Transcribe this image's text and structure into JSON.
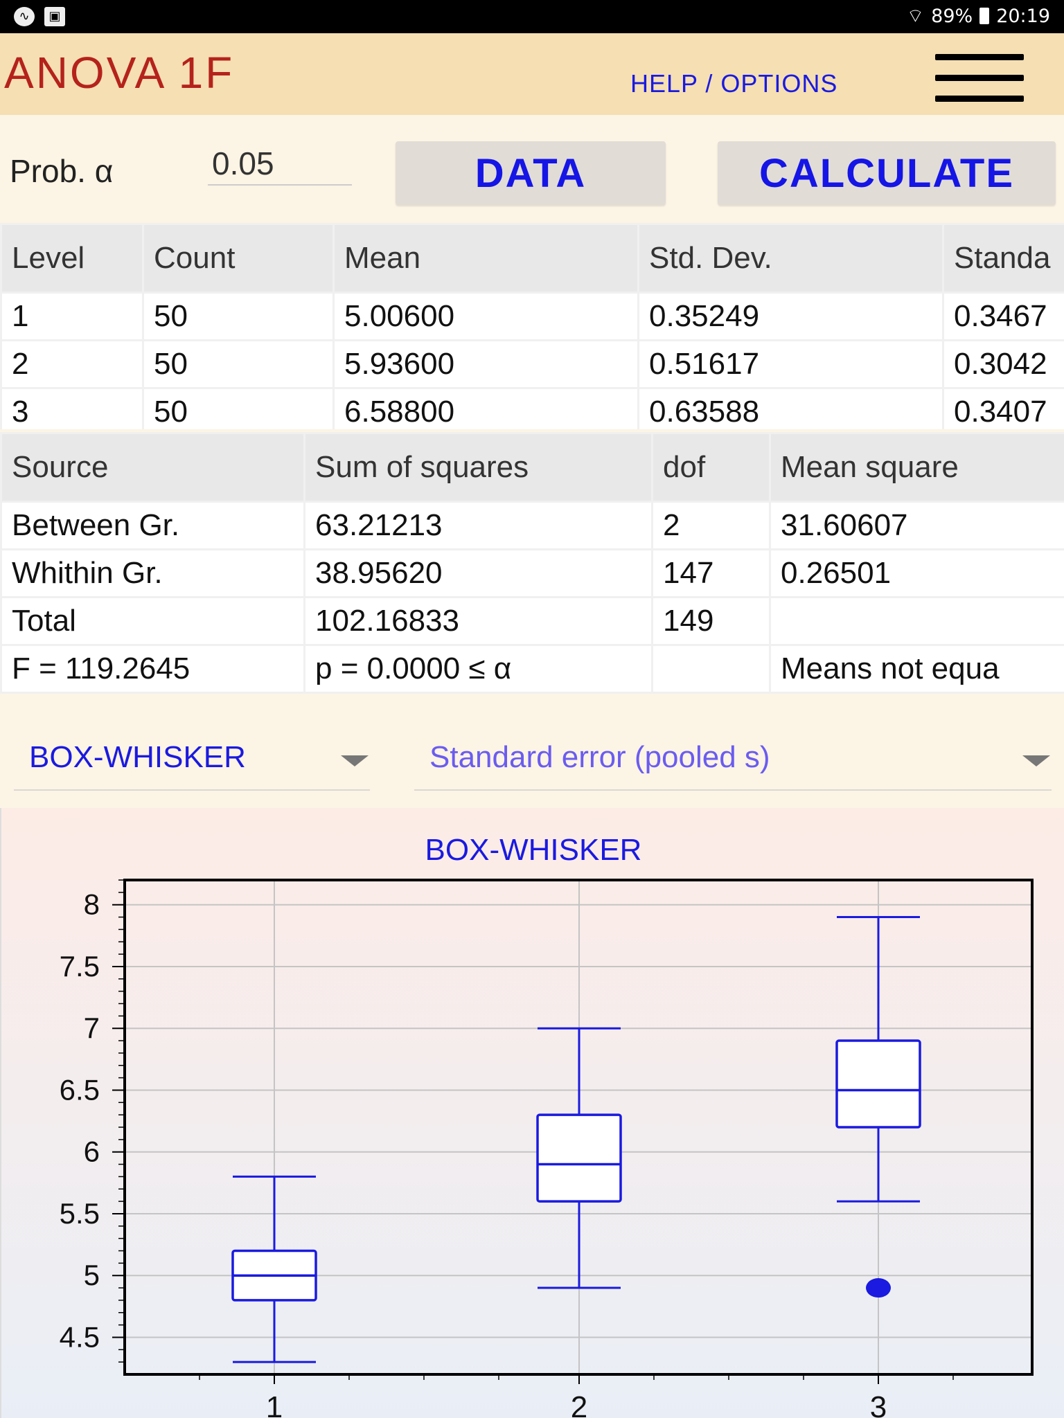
{
  "status": {
    "battery": "89%",
    "time": "20:19",
    "left_icons": [
      "activity-icon",
      "image-icon"
    ]
  },
  "app": {
    "title": "ANOVA 1F",
    "help": "HELP / OPTIONS",
    "menu_icon": "hamburger-menu-icon"
  },
  "controls": {
    "prob_label": "Prob. α",
    "alpha_value": "0.05",
    "data_button": "DATA",
    "calculate_button": "CALCULATE"
  },
  "summary_table": {
    "headers": [
      "Level",
      "Count",
      "Mean",
      "Std. Dev.",
      "Standa"
    ],
    "rows": [
      [
        "1",
        "50",
        "5.00600",
        "0.35249",
        "0.3467"
      ],
      [
        "2",
        "50",
        "5.93600",
        "0.51617",
        "0.3042"
      ],
      [
        "3",
        "50",
        "6.58800",
        "0.63588",
        "0.3407"
      ]
    ]
  },
  "anova_table": {
    "headers": [
      "Source",
      "Sum of squares",
      "dof",
      "Mean square"
    ],
    "rows": [
      [
        "Between Gr.",
        "63.21213",
        "2",
        "31.60607"
      ],
      [
        "Whithin Gr.",
        "38.95620",
        "147",
        "0.26501"
      ],
      [
        "Total",
        "102.16833",
        "149",
        ""
      ],
      [
        "F = 119.2645",
        "p = 0.0000 ≤ α",
        "",
        "Means not equa"
      ]
    ]
  },
  "selectors": {
    "plot_type": "BOX-WHISKER",
    "error_type": "Standard error (pooled s)"
  },
  "colors": {
    "accent": "#1a1ae0",
    "title": "#b5221c",
    "appbar": "#f5dfb3",
    "panel": "#fcf4e4"
  },
  "chart_data": {
    "type": "boxplot",
    "title": "BOX-WHISKER",
    "categories": [
      "1",
      "2",
      "3"
    ],
    "ylim": [
      4.2,
      8.2
    ],
    "yticks": [
      "4.5",
      "5",
      "5.5",
      "6",
      "6.5",
      "7",
      "7.5",
      "8"
    ],
    "grid": true,
    "boxes": [
      {
        "min": 4.3,
        "q1": 4.8,
        "median": 5.0,
        "q3": 5.2,
        "max": 5.8,
        "outliers": []
      },
      {
        "min": 4.9,
        "q1": 5.6,
        "median": 5.9,
        "q3": 6.3,
        "max": 7.0,
        "outliers": []
      },
      {
        "min": 5.6,
        "q1": 6.2,
        "median": 6.5,
        "q3": 6.9,
        "max": 7.9,
        "outliers": [
          4.9
        ]
      }
    ]
  }
}
